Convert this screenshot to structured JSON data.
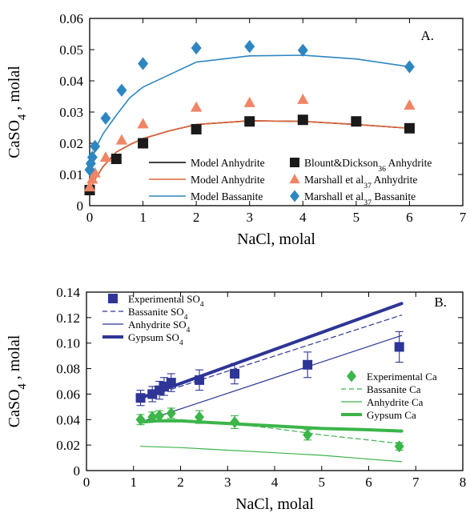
{
  "chart_data": [
    {
      "panel_label": "A.",
      "type": "scatter",
      "xlabel": "NaCl, molal",
      "ylabel_parts": [
        "CaSO",
        "4",
        " , molal"
      ],
      "xlim": [
        0,
        7
      ],
      "ylim": [
        0,
        0.06
      ],
      "x_ticks": [
        "0",
        "1",
        "2",
        "3",
        "4",
        "5",
        "6",
        "7"
      ],
      "y_ticks": [
        "0",
        "0.01",
        "0.02",
        "0.03",
        "0.04",
        "0.05",
        "0.06"
      ],
      "legend_position": "bottom-right",
      "series": [
        {
          "kind": "line",
          "name_parts": [
            "Model Anhydrite"
          ],
          "color": "#000000",
          "x": [
            0.0,
            0.1,
            0.25,
            0.5,
            0.75,
            1.0,
            1.5,
            2.0,
            3.0,
            4.0,
            5.0,
            6.0
          ],
          "y": [
            0.0045,
            0.0085,
            0.0125,
            0.0172,
            0.0195,
            0.0215,
            0.024,
            0.026,
            0.0272,
            0.027,
            0.026,
            0.0248
          ]
        },
        {
          "kind": "line",
          "name_parts": [
            "Model Anhydrite"
          ],
          "color": "#e0653a",
          "x": [
            0.0,
            0.1,
            0.25,
            0.5,
            0.75,
            1.0,
            1.5,
            2.0,
            3.0,
            4.0,
            5.0,
            6.0
          ],
          "y": [
            0.0045,
            0.0085,
            0.0125,
            0.0172,
            0.0195,
            0.0215,
            0.024,
            0.026,
            0.0272,
            0.027,
            0.026,
            0.0248
          ]
        },
        {
          "kind": "line",
          "name_parts": [
            "Model Bassanite"
          ],
          "color": "#2e86c1",
          "x": [
            0.0,
            0.05,
            0.1,
            0.25,
            0.5,
            0.75,
            1.0,
            1.5,
            2.0,
            3.0,
            4.0,
            5.0,
            6.0
          ],
          "y": [
            0.012,
            0.015,
            0.018,
            0.023,
            0.029,
            0.0345,
            0.038,
            0.042,
            0.046,
            0.048,
            0.0482,
            0.047,
            0.0445
          ]
        },
        {
          "kind": "marker",
          "marker": "square",
          "name_parts": [
            "Blount&Dickson",
            "36",
            " Anhydrite"
          ],
          "color": "#1a1a1a",
          "x": [
            0.0,
            0.5,
            1.0,
            2.0,
            3.0,
            4.0,
            5.0,
            6.0
          ],
          "y": [
            0.005,
            0.015,
            0.02,
            0.0245,
            0.027,
            0.0275,
            0.027,
            0.0248
          ]
        },
        {
          "kind": "marker",
          "marker": "triangle",
          "name_parts": [
            "Marshall et al",
            "37",
            " Anhydrite"
          ],
          "color": "#f08566",
          "x": [
            0.0,
            0.05,
            0.1,
            0.3,
            0.6,
            1.0,
            2.0,
            3.0,
            4.0,
            6.0
          ],
          "y": [
            0.006,
            0.0085,
            0.0105,
            0.0155,
            0.021,
            0.0262,
            0.0315,
            0.033,
            0.034,
            0.0322
          ]
        },
        {
          "kind": "marker",
          "marker": "diamond",
          "name_parts": [
            "Marshall et al",
            "37",
            " Bassanite"
          ],
          "color": "#2e86c1",
          "x": [
            0.0,
            0.02,
            0.05,
            0.1,
            0.3,
            0.6,
            1.0,
            2.0,
            3.0,
            4.0,
            6.0
          ],
          "y": [
            0.0115,
            0.0135,
            0.0155,
            0.019,
            0.028,
            0.037,
            0.0455,
            0.0505,
            0.051,
            0.0498,
            0.0445
          ]
        }
      ]
    },
    {
      "panel_label": "B.",
      "type": "scatter",
      "xlabel": "NaCl, molal",
      "ylabel_parts": [
        "CaSO",
        "4",
        " , molal"
      ],
      "xlim": [
        0,
        8
      ],
      "ylim": [
        0,
        0.14
      ],
      "x_ticks": [
        "0",
        "1",
        "2",
        "3",
        "4",
        "5",
        "6",
        "7",
        "8"
      ],
      "y_ticks": [
        "0",
        "0.02",
        "0.04",
        "0.06",
        "0.08",
        "0.10",
        "0.12",
        "0.14"
      ],
      "legend_position": "top-left and lower-right",
      "series": [
        {
          "kind": "marker",
          "marker": "square",
          "name_parts": [
            "Experimental SO",
            "4"
          ],
          "color": "#2e3596",
          "x": [
            1.15,
            1.4,
            1.55,
            1.65,
            1.8,
            2.4,
            3.15,
            4.7,
            6.65
          ],
          "y": [
            0.057,
            0.06,
            0.063,
            0.066,
            0.069,
            0.071,
            0.076,
            0.083,
            0.097
          ],
          "err": [
            0.006,
            0.006,
            0.007,
            0.007,
            0.007,
            0.008,
            0.008,
            0.01,
            0.012
          ]
        },
        {
          "kind": "line",
          "dash": "dashed",
          "width": 1.2,
          "name_parts": [
            "Bassanite SO",
            "4"
          ],
          "color": "#2e3596",
          "x": [
            1.15,
            6.7
          ],
          "y": [
            0.056,
            0.122
          ]
        },
        {
          "kind": "line",
          "width": 1.2,
          "name_parts": [
            "Anhydrite SO",
            "4"
          ],
          "color": "#2e3596",
          "x": [
            1.15,
            6.7
          ],
          "y": [
            0.038,
            0.106
          ]
        },
        {
          "kind": "line",
          "width": 4,
          "name_parts": [
            "Gypsum SO",
            "4"
          ],
          "color": "#2e3596",
          "x": [
            1.15,
            6.7
          ],
          "y": [
            0.057,
            0.131
          ]
        },
        {
          "kind": "marker",
          "marker": "diamond",
          "name_parts": [
            "Experimental Ca"
          ],
          "color": "#3cb54a",
          "x": [
            1.15,
            1.4,
            1.55,
            1.8,
            2.4,
            3.15,
            4.7,
            6.65
          ],
          "y": [
            0.04,
            0.042,
            0.043,
            0.045,
            0.042,
            0.038,
            0.028,
            0.019
          ],
          "err": [
            0.004,
            0.004,
            0.004,
            0.004,
            0.005,
            0.005,
            0.004,
            0.003
          ]
        },
        {
          "kind": "line",
          "dash": "dashed",
          "width": 1.2,
          "name_parts": [
            "Bassanite Ca"
          ],
          "color": "#3cb54a",
          "x": [
            1.15,
            1.5,
            2.0,
            3.0,
            4.0,
            5.0,
            6.0,
            6.7
          ],
          "y": [
            0.039,
            0.04,
            0.04,
            0.037,
            0.033,
            0.028,
            0.024,
            0.021
          ]
        },
        {
          "kind": "line",
          "width": 1.2,
          "name_parts": [
            "Anhydrite Ca"
          ],
          "color": "#3cb54a",
          "x": [
            1.15,
            2.0,
            3.0,
            4.0,
            5.0,
            6.0,
            6.7
          ],
          "y": [
            0.019,
            0.018,
            0.016,
            0.014,
            0.012,
            0.009,
            0.007
          ]
        },
        {
          "kind": "line",
          "width": 4,
          "name_parts": [
            "Gypsum Ca"
          ],
          "color": "#3cb54a",
          "x": [
            1.15,
            1.5,
            2.0,
            3.0,
            4.0,
            5.0,
            6.0,
            6.7
          ],
          "y": [
            0.038,
            0.039,
            0.039,
            0.037,
            0.035,
            0.033,
            0.032,
            0.031
          ]
        }
      ]
    }
  ]
}
